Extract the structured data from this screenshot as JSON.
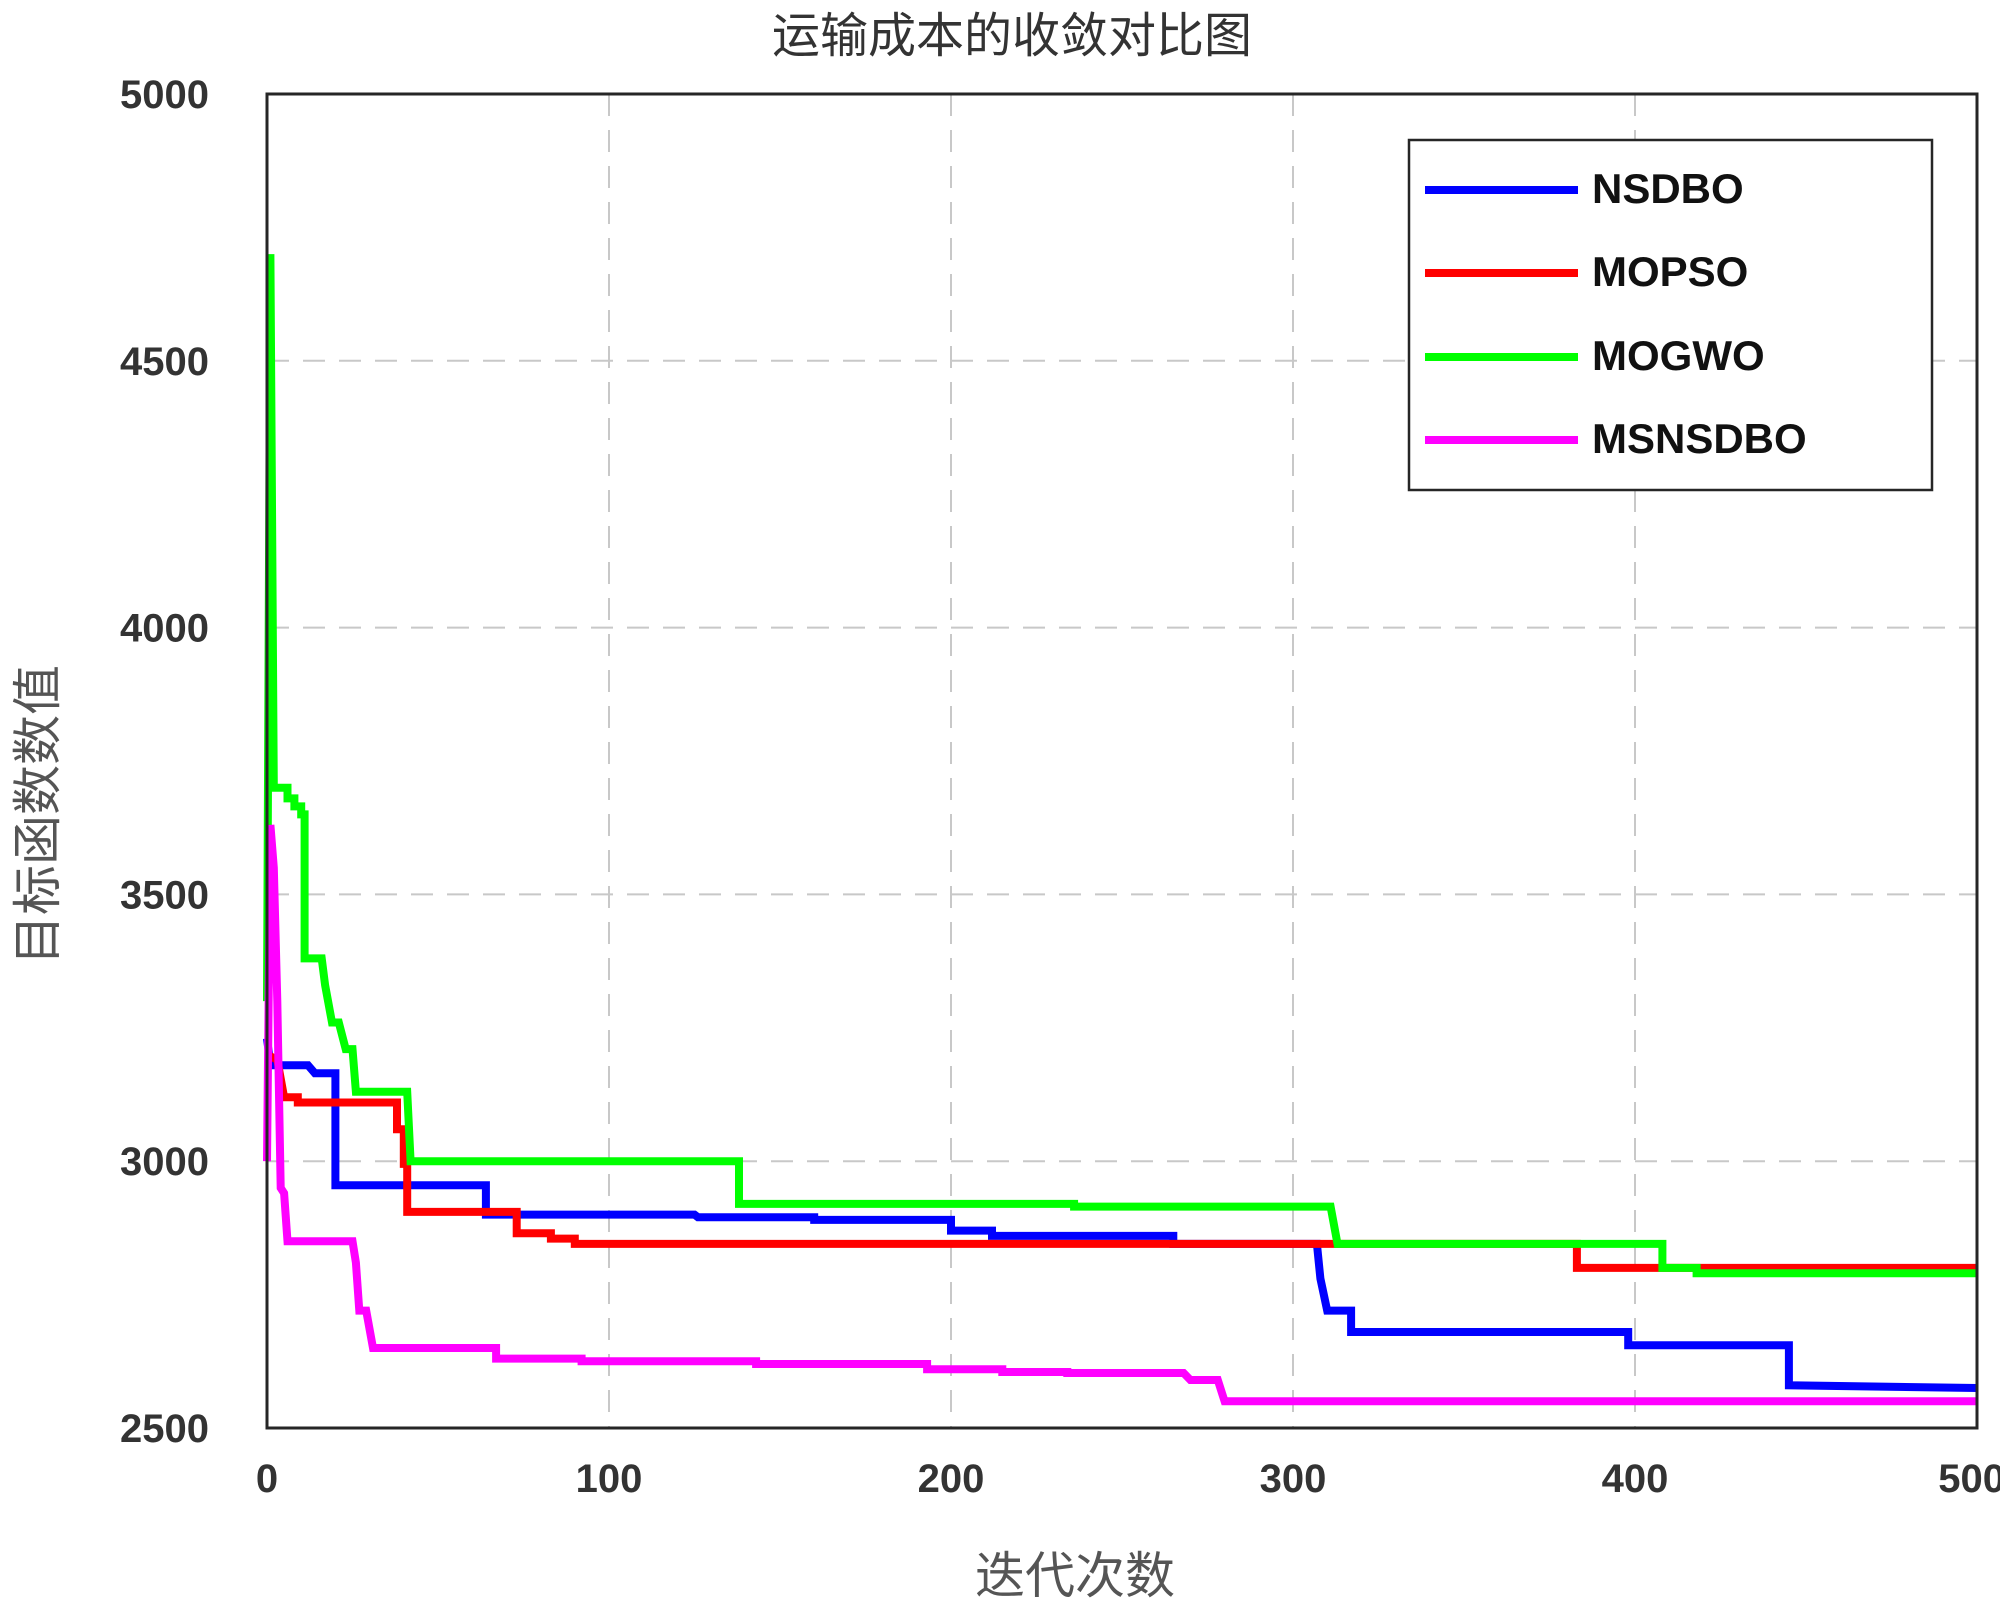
{
  "chart_data": {
    "type": "line",
    "title": "运输成本的收敛对比图",
    "xlabel": "迭代次数",
    "ylabel": "目标函数数值",
    "xlim": [
      0,
      500
    ],
    "ylim": [
      2500,
      5000
    ],
    "xticks": [
      "0",
      "100",
      "200",
      "300",
      "400",
      "500"
    ],
    "yticks": [
      "2500",
      "3000",
      "3500",
      "4000",
      "4500",
      "5000"
    ],
    "grid": true,
    "legend_position": "top-right",
    "step": true,
    "series": [
      {
        "name": "NSDBO",
        "color": "#0000ff",
        "points": [
          [
            0,
            3230
          ],
          [
            1,
            3180
          ],
          [
            12,
            3180
          ],
          [
            14,
            3165
          ],
          [
            20,
            3165
          ],
          [
            20,
            2955
          ],
          [
            64,
            2955
          ],
          [
            64,
            2900
          ],
          [
            125,
            2900
          ],
          [
            126,
            2895
          ],
          [
            160,
            2895
          ],
          [
            160,
            2890
          ],
          [
            200,
            2890
          ],
          [
            200,
            2870
          ],
          [
            212,
            2870
          ],
          [
            212,
            2860
          ],
          [
            265,
            2860
          ],
          [
            265,
            2845
          ],
          [
            307,
            2845
          ],
          [
            308,
            2780
          ],
          [
            310,
            2720
          ],
          [
            317,
            2720
          ],
          [
            317,
            2680
          ],
          [
            398,
            2680
          ],
          [
            398,
            2655
          ],
          [
            445,
            2655
          ],
          [
            445,
            2580
          ],
          [
            500,
            2575
          ]
        ]
      },
      {
        "name": "MOPSO",
        "color": "#ff0000",
        "points": [
          [
            0,
            3200
          ],
          [
            3,
            3190
          ],
          [
            5,
            3120
          ],
          [
            9,
            3120
          ],
          [
            9,
            3110
          ],
          [
            38,
            3110
          ],
          [
            38,
            3060
          ],
          [
            40,
            3060
          ],
          [
            40,
            2995
          ],
          [
            41,
            2995
          ],
          [
            41,
            2905
          ],
          [
            73,
            2905
          ],
          [
            73,
            2865
          ],
          [
            83,
            2865
          ],
          [
            83,
            2855
          ],
          [
            90,
            2855
          ],
          [
            90,
            2845
          ],
          [
            383,
            2845
          ],
          [
            383,
            2800
          ],
          [
            500,
            2800
          ]
        ]
      },
      {
        "name": "MOGWO",
        "color": "#00ff00",
        "points": [
          [
            0,
            3300
          ],
          [
            1,
            4700
          ],
          [
            2,
            3700
          ],
          [
            6,
            3700
          ],
          [
            6,
            3680
          ],
          [
            8,
            3680
          ],
          [
            8,
            3665
          ],
          [
            10,
            3665
          ],
          [
            10,
            3650
          ],
          [
            11,
            3650
          ],
          [
            11,
            3380
          ],
          [
            16,
            3380
          ],
          [
            17,
            3330
          ],
          [
            19,
            3260
          ],
          [
            21,
            3260
          ],
          [
            23,
            3210
          ],
          [
            25,
            3210
          ],
          [
            26,
            3130
          ],
          [
            41,
            3130
          ],
          [
            42,
            3000
          ],
          [
            138,
            3000
          ],
          [
            138,
            2920
          ],
          [
            236,
            2920
          ],
          [
            236,
            2915
          ],
          [
            311,
            2915
          ],
          [
            313,
            2845
          ],
          [
            408,
            2845
          ],
          [
            408,
            2800
          ],
          [
            418,
            2800
          ],
          [
            418,
            2790
          ],
          [
            500,
            2790
          ]
        ]
      },
      {
        "name": "MSNSDBO",
        "color": "#ff00ff",
        "points": [
          [
            0,
            3000
          ],
          [
            1,
            3630
          ],
          [
            2,
            3550
          ],
          [
            3,
            3300
          ],
          [
            4,
            2950
          ],
          [
            5,
            2940
          ],
          [
            6,
            2850
          ],
          [
            25,
            2850
          ],
          [
            26,
            2810
          ],
          [
            27,
            2720
          ],
          [
            29,
            2720
          ],
          [
            31,
            2650
          ],
          [
            67,
            2650
          ],
          [
            67,
            2630
          ],
          [
            92,
            2630
          ],
          [
            92,
            2625
          ],
          [
            143,
            2625
          ],
          [
            143,
            2620
          ],
          [
            193,
            2620
          ],
          [
            193,
            2610
          ],
          [
            215,
            2610
          ],
          [
            215,
            2605
          ],
          [
            234,
            2605
          ],
          [
            234,
            2603
          ],
          [
            268,
            2603
          ],
          [
            270,
            2590
          ],
          [
            278,
            2590
          ],
          [
            280,
            2550
          ],
          [
            500,
            2550
          ]
        ]
      }
    ]
  }
}
